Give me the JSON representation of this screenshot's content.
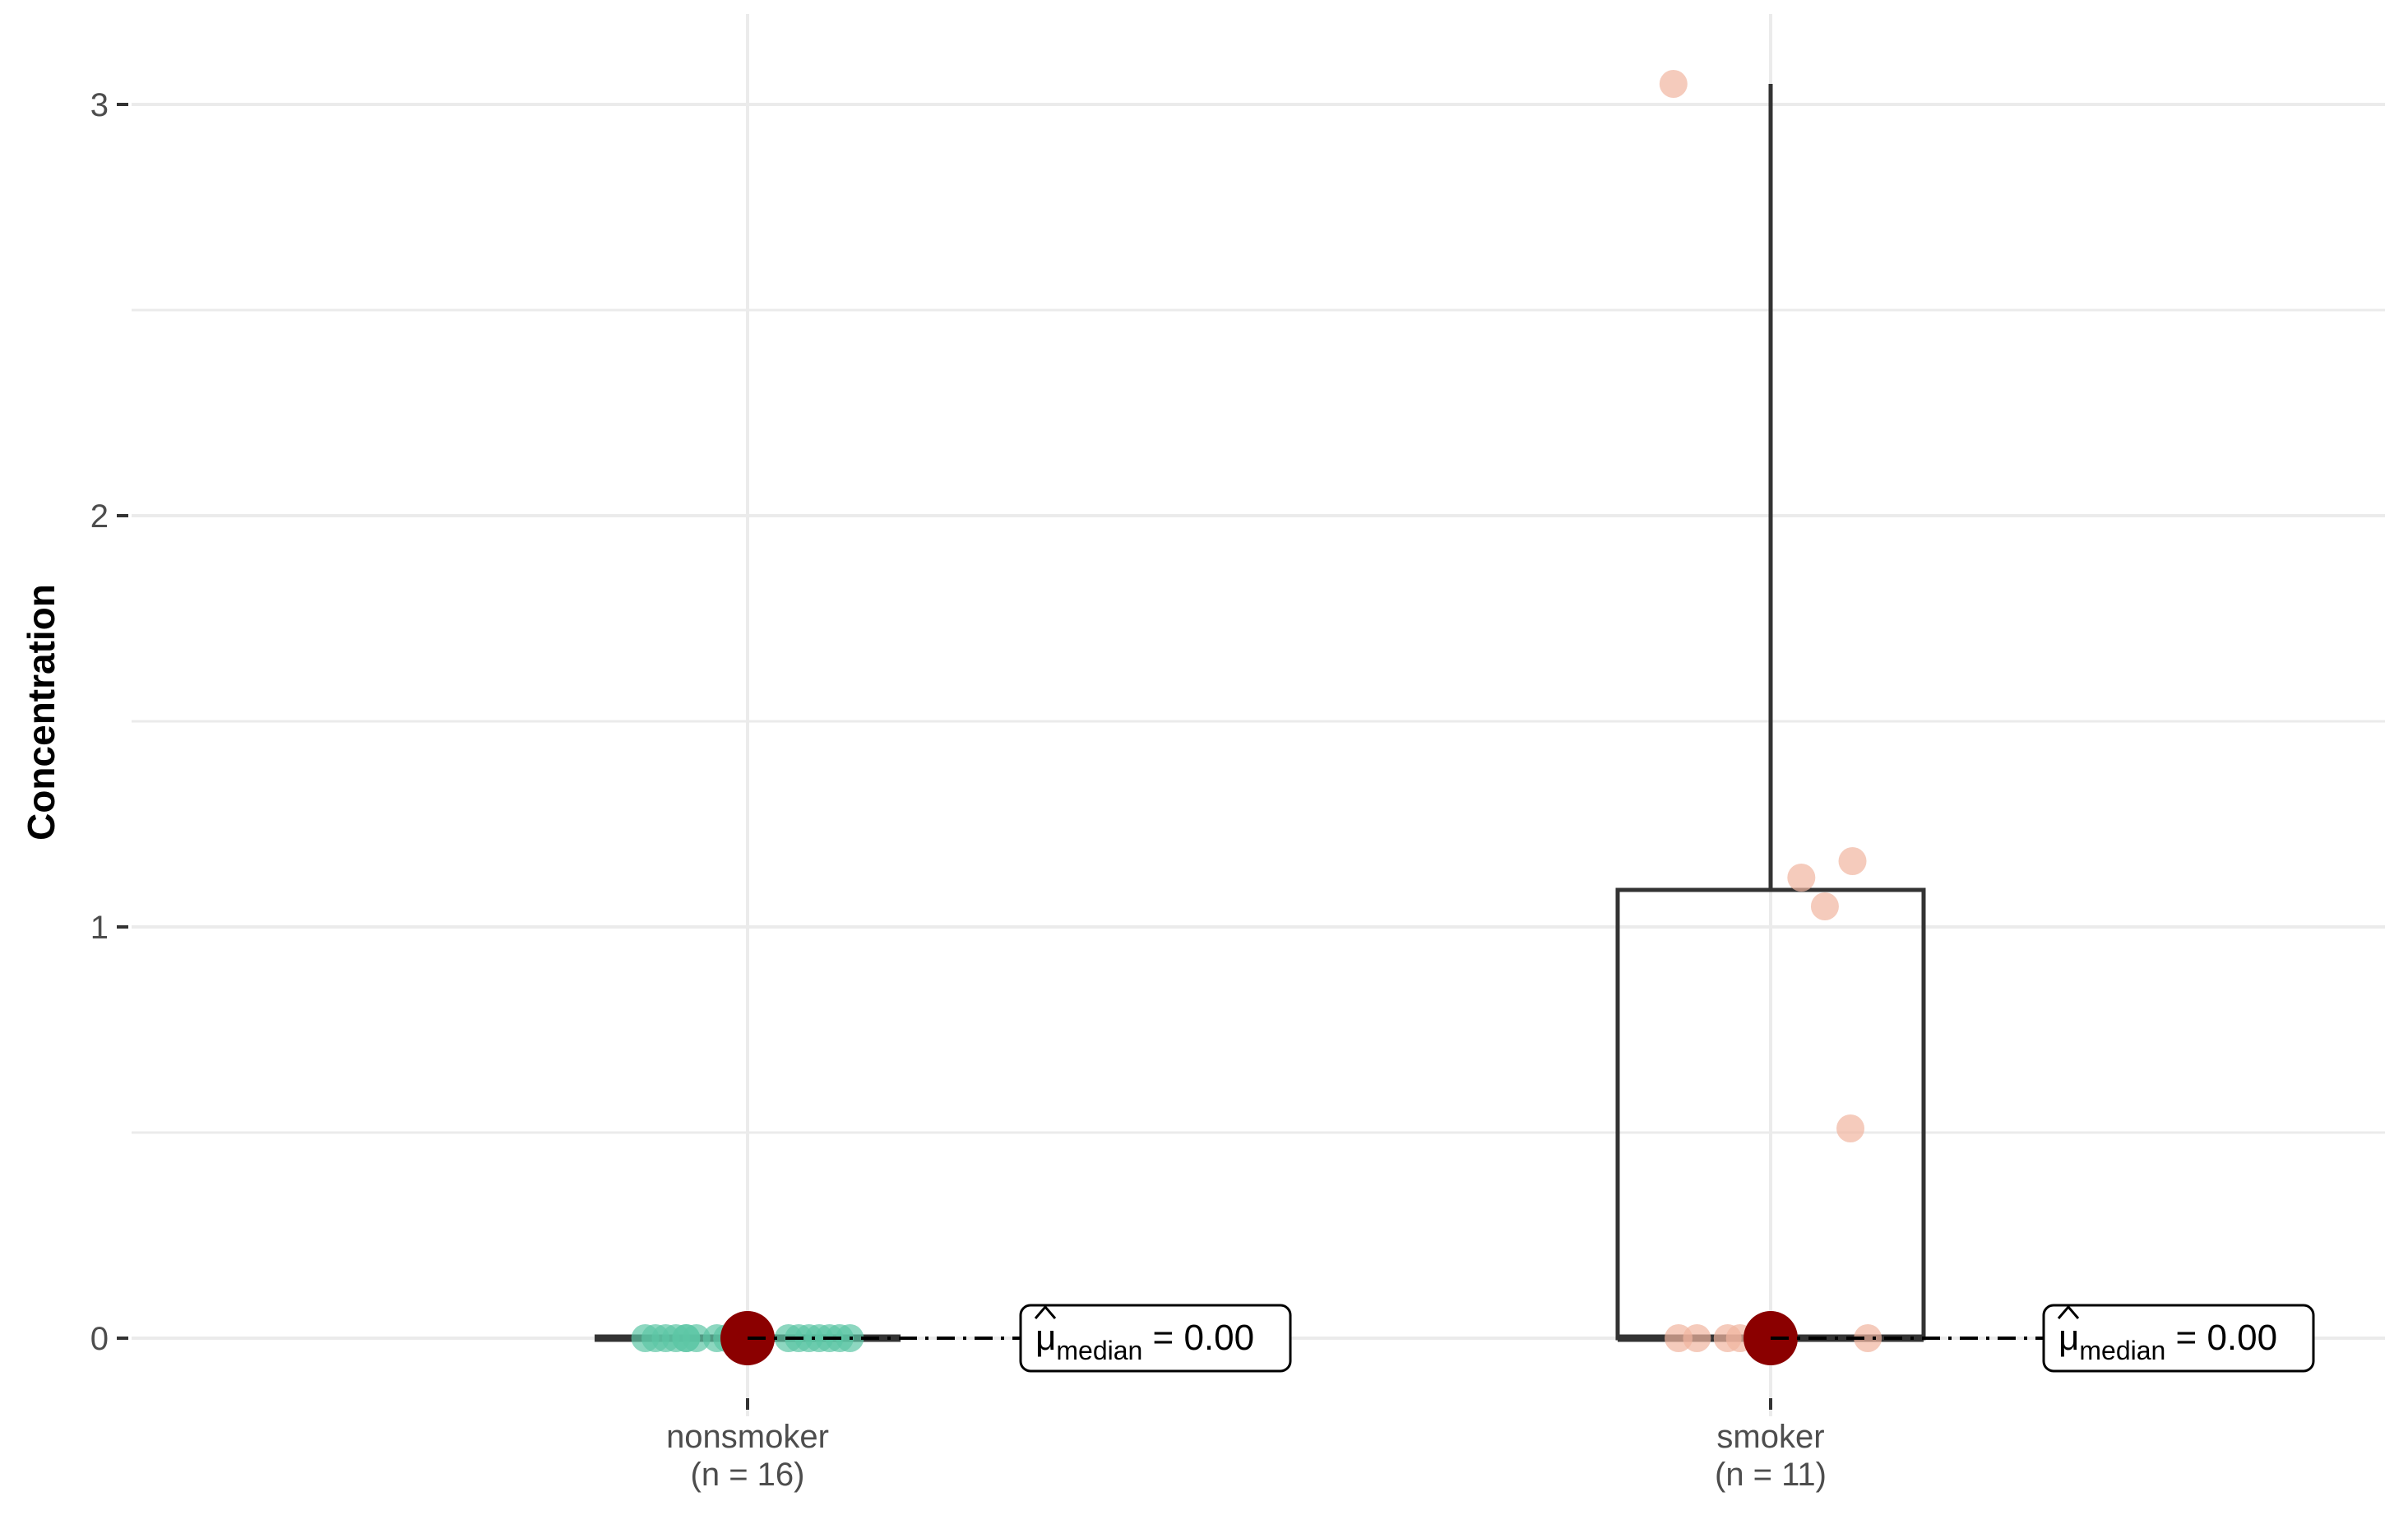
{
  "chart_data": {
    "type": "box",
    "ylabel": "Concentration",
    "ylim": [
      -0.15,
      3.2
    ],
    "yticks": [
      0,
      1,
      2,
      3
    ],
    "ytick_labels": [
      "0",
      "1",
      "2",
      "3"
    ],
    "grid": true,
    "categories": [
      "nonsmoker",
      "smoker"
    ],
    "category_labels": [
      {
        "name": "nonsmoker",
        "n_label": "(n = 16)"
      },
      {
        "name": "smoker",
        "n_label": "(n = 11)"
      }
    ],
    "groups": [
      {
        "name": "nonsmoker",
        "n": 16,
        "color": "#5cc6a5",
        "q1": 0,
        "median": 0,
        "q3": 0,
        "whisker_low": 0,
        "whisker_high": 0,
        "points": [
          {
            "dx": -0.1,
            "y": 0
          },
          {
            "dx": -0.09,
            "y": 0
          },
          {
            "dx": -0.08,
            "y": 0
          },
          {
            "dx": -0.07,
            "y": 0
          },
          {
            "dx": -0.06,
            "y": 0
          },
          {
            "dx": -0.06,
            "y": 0
          },
          {
            "dx": -0.05,
            "y": 0
          },
          {
            "dx": -0.03,
            "y": 0
          },
          {
            "dx": -0.02,
            "y": 0
          },
          {
            "dx": 0.04,
            "y": 0
          },
          {
            "dx": 0.05,
            "y": 0
          },
          {
            "dx": 0.06,
            "y": 0
          },
          {
            "dx": 0.07,
            "y": 0
          },
          {
            "dx": 0.08,
            "y": 0
          },
          {
            "dx": 0.09,
            "y": 0
          },
          {
            "dx": 0.1,
            "y": 0
          }
        ],
        "annotation": {
          "mu": "μ",
          "sub": "median",
          "rest": " = 0.00"
        }
      },
      {
        "name": "smoker",
        "n": 11,
        "color": "#f1b59f",
        "q1": 0,
        "median": 0,
        "q3": 1.09,
        "whisker_low": 0,
        "whisker_high": 3.05,
        "points": [
          {
            "dx": -0.095,
            "y": 3.05
          },
          {
            "dx": 0.03,
            "y": 1.12
          },
          {
            "dx": 0.08,
            "y": 1.16
          },
          {
            "dx": 0.053,
            "y": 1.05
          },
          {
            "dx": 0.078,
            "y": 0.51
          },
          {
            "dx": -0.09,
            "y": 0
          },
          {
            "dx": -0.072,
            "y": 0
          },
          {
            "dx": -0.042,
            "y": 0
          },
          {
            "dx": -0.03,
            "y": 0
          },
          {
            "dx": 0.01,
            "y": 0
          },
          {
            "dx": 0.095,
            "y": 0
          }
        ],
        "annotation": {
          "mu": "μ",
          "sub": "median",
          "rest": " = 0.00"
        }
      }
    ],
    "median_marker_color": "#8b0000"
  }
}
